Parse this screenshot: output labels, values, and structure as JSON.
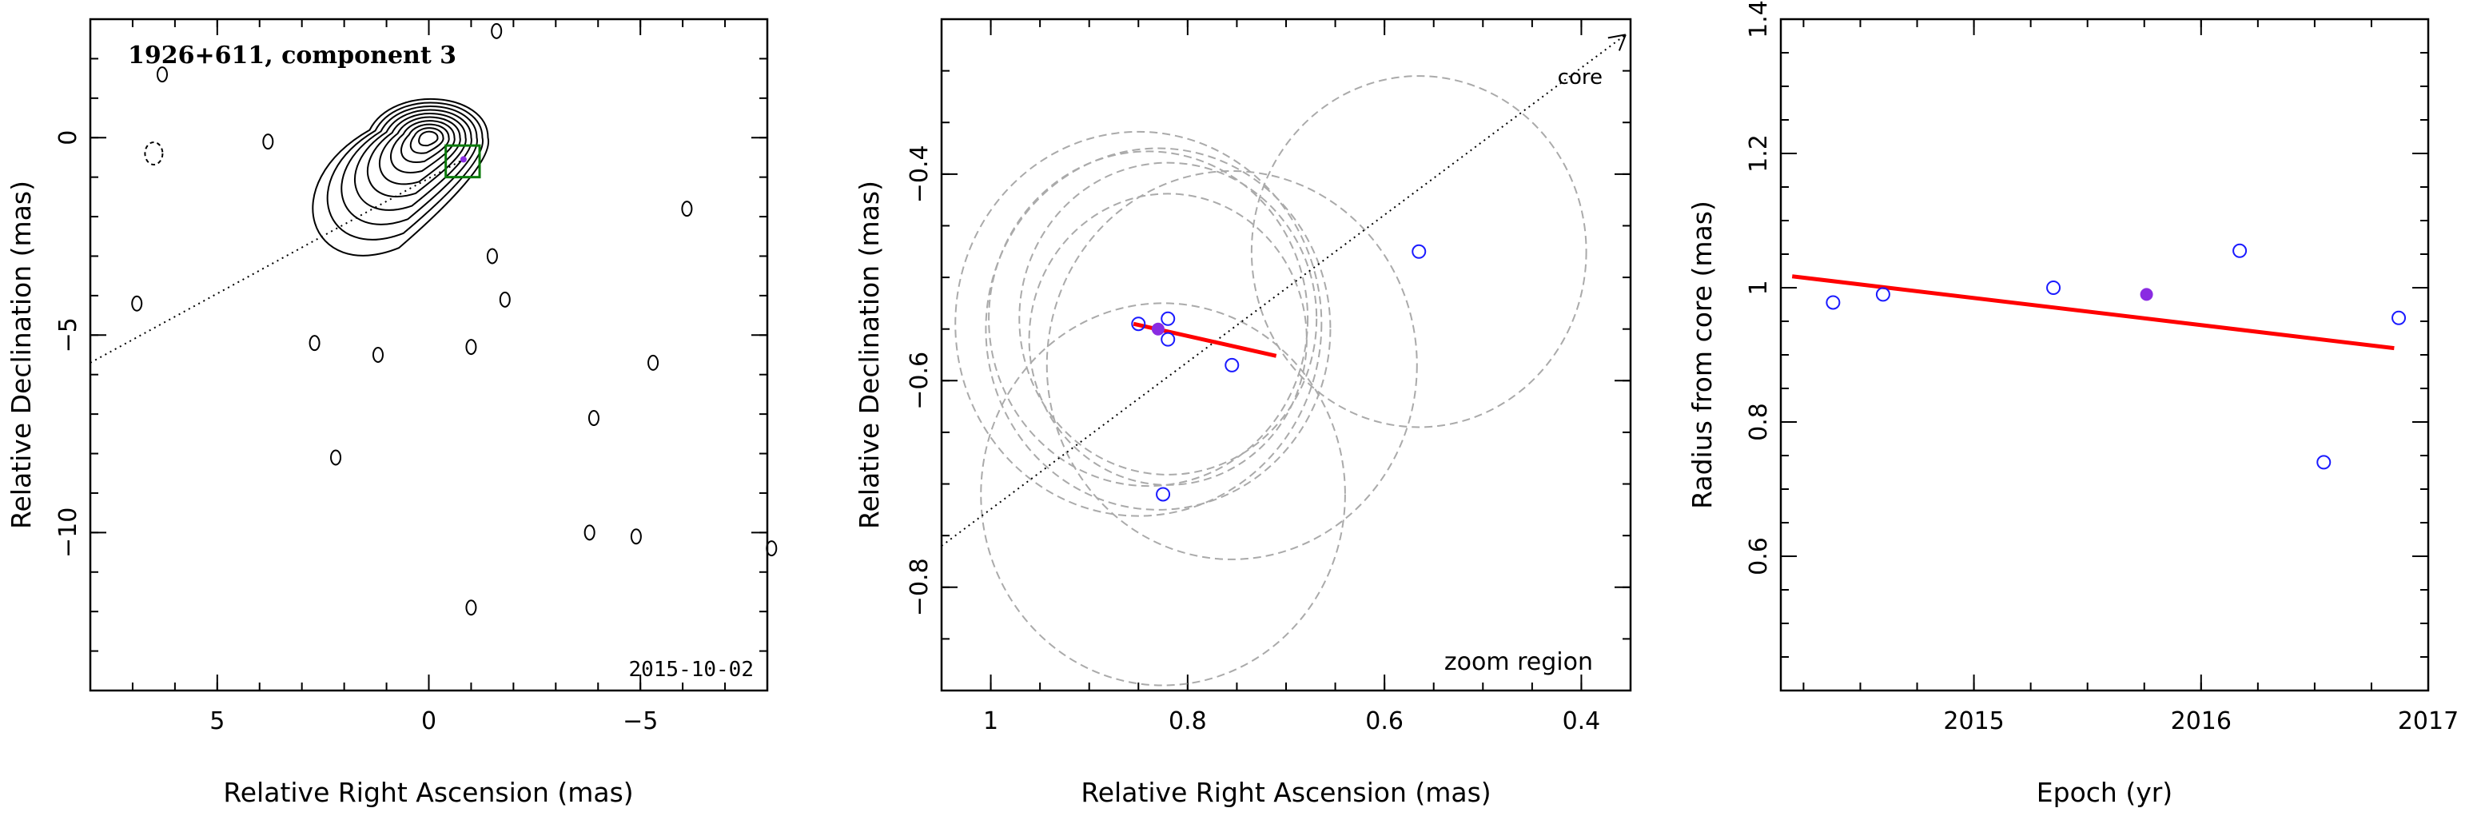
{
  "colors": {
    "points": "#1a1aff",
    "current_point": "#8a2be2",
    "fit_line": "#ff0000",
    "circles": "#aaaaaa",
    "box": "#0a7a0a",
    "axes": "#000000"
  },
  "chart_data": [
    {
      "panel": "left",
      "type": "contour",
      "title": "1926+611, component 3",
      "annotation": "2015-10-02",
      "xlabel": "Relative Right Ascension (mas)",
      "ylabel": "Relative Declination (mas)",
      "xlim": [
        8,
        -8
      ],
      "ylim": [
        -14,
        3
      ],
      "xticks": [
        {
          "v": 5,
          "t": "5"
        },
        {
          "v": 0,
          "t": "0"
        },
        {
          "v": -5,
          "t": "−5"
        }
      ],
      "yticks": [
        {
          "v": 0,
          "t": "0"
        },
        {
          "v": -5,
          "t": "−5"
        },
        {
          "v": -10,
          "t": "−10"
        }
      ],
      "core": [
        0,
        0
      ],
      "component_position": [
        -0.82,
        -0.55
      ],
      "zoom_box": {
        "x": [
          -0.4,
          -1.2
        ],
        "y": [
          -0.2,
          -1.0
        ]
      },
      "jet_direction_line": {
        "from": [
          8,
          -5.7
        ],
        "to": [
          -0.82,
          -0.55
        ]
      },
      "contour_levels": 10,
      "noise_islands": [
        [
          6.3,
          1.6
        ],
        [
          3.8,
          -0.1
        ],
        [
          2.7,
          -5.2
        ],
        [
          2.2,
          -8.1
        ],
        [
          -1.0,
          -5.3
        ],
        [
          -1.8,
          -4.1
        ],
        [
          -3.8,
          -10.0
        ],
        [
          -4.9,
          -10.1
        ],
        [
          -3.9,
          -7.1
        ],
        [
          -5.3,
          -5.7
        ],
        [
          -6.1,
          -1.8
        ],
        [
          -8.1,
          -10.4
        ],
        [
          -1.5,
          -3.0
        ],
        [
          -1.0,
          -11.9
        ],
        [
          -1.6,
          2.7
        ],
        [
          6.9,
          -4.2
        ],
        [
          1.2,
          -5.5
        ]
      ]
    },
    {
      "panel": "middle",
      "type": "scatter",
      "xlabel": "Relative Right Ascension (mas)",
      "ylabel": "Relative Declination (mas)",
      "annotation": "zoom region",
      "arrow_label": "core",
      "xlim": [
        1.05,
        0.35
      ],
      "ylim": [
        -0.9,
        -0.25
      ],
      "xticks": [
        {
          "v": 1.0,
          "t": "1"
        },
        {
          "v": 0.8,
          "t": "0.8"
        },
        {
          "v": 0.6,
          "t": "0.6"
        },
        {
          "v": 0.4,
          "t": "0.4"
        }
      ],
      "yticks": [
        {
          "v": -0.4,
          "t": "−0.4"
        },
        {
          "v": -0.6,
          "t": "−0.6"
        },
        {
          "v": -0.8,
          "t": "−0.8"
        }
      ],
      "points": [
        {
          "x": 0.85,
          "y": -0.545
        },
        {
          "x": 0.82,
          "y": -0.54
        },
        {
          "x": 0.82,
          "y": -0.56
        },
        {
          "x": 0.755,
          "y": -0.585
        },
        {
          "x": 0.825,
          "y": -0.71
        },
        {
          "x": 0.565,
          "y": -0.475
        }
      ],
      "current_point": {
        "x": 0.83,
        "y": -0.55
      },
      "circles": [
        {
          "x": 0.85,
          "y": -0.545,
          "r": 0.186
        },
        {
          "x": 0.84,
          "y": -0.54,
          "r": 0.162
        },
        {
          "x": 0.82,
          "y": -0.54,
          "r": 0.151
        },
        {
          "x": 0.82,
          "y": -0.56,
          "r": 0.141
        },
        {
          "x": 0.83,
          "y": -0.55,
          "r": 0.175
        },
        {
          "x": 0.755,
          "y": -0.585,
          "r": 0.188
        },
        {
          "x": 0.825,
          "y": -0.71,
          "r": 0.185
        },
        {
          "x": 0.565,
          "y": -0.475,
          "r": 0.17
        }
      ],
      "fit_line": {
        "x": [
          0.855,
          0.71
        ],
        "y": [
          -0.545,
          -0.576
        ]
      },
      "core_direction_line": {
        "x": [
          1.05,
          0.355
        ],
        "y": [
          -0.76,
          -0.265
        ]
      }
    },
    {
      "panel": "right",
      "type": "scatter",
      "xlabel": "Epoch (yr)",
      "ylabel": "Radius from core (mas)",
      "xlim": [
        2014.15,
        2017.0
      ],
      "ylim": [
        0.4,
        1.4
      ],
      "xticks": [
        {
          "v": 2015,
          "t": "2015"
        },
        {
          "v": 2016,
          "t": "2016"
        },
        {
          "v": 2017,
          "t": "2017"
        }
      ],
      "yticks": [
        {
          "v": 0.6,
          "t": "0.6"
        },
        {
          "v": 0.8,
          "t": "0.8"
        },
        {
          "v": 1.0,
          "t": "1"
        },
        {
          "v": 1.2,
          "t": "1.2"
        },
        {
          "v": 1.4,
          "t": "1.4"
        }
      ],
      "points": [
        {
          "x": 2014.38,
          "y": 0.978
        },
        {
          "x": 2014.6,
          "y": 0.99
        },
        {
          "x": 2015.35,
          "y": 1.0
        },
        {
          "x": 2016.17,
          "y": 1.055
        },
        {
          "x": 2016.54,
          "y": 0.74
        },
        {
          "x": 2016.87,
          "y": 0.955
        }
      ],
      "current_point": {
        "x": 2015.76,
        "y": 0.99
      },
      "fit_line": {
        "x": [
          2014.2,
          2016.85
        ],
        "y": [
          1.017,
          0.91
        ]
      }
    }
  ]
}
